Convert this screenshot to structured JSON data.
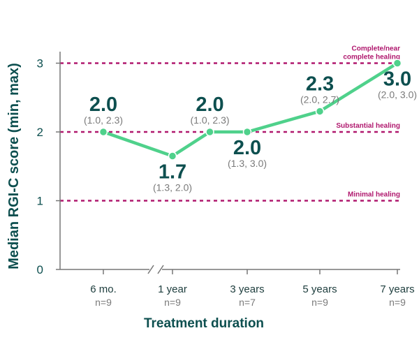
{
  "colors": {
    "line": "#4fd18b",
    "reference": "#b0186e",
    "text_dark": "#0d4f4f",
    "text_muted": "#7a7a7a",
    "axis": "#777777"
  },
  "chart_data": {
    "type": "line",
    "title": "",
    "xlabel": "Treatment duration",
    "ylabel": "Median RGI-C score (min, max)",
    "ylim": [
      0,
      3.15
    ],
    "y_ticks": [
      "0",
      "1",
      "2",
      "3"
    ],
    "grid": false,
    "categories": [
      "6 mo.",
      "1 year",
      "",
      "3 years",
      "5 years",
      "7 years"
    ],
    "tick_labels": [
      {
        "label": "6 mo.",
        "n": "n=9",
        "x": 0
      },
      {
        "label": "1 year",
        "n": "n=9",
        "x": 1
      },
      {
        "label": "3 years",
        "n": "n=7",
        "x": 2
      },
      {
        "label": "5 years",
        "n": "n=9",
        "x": 3
      },
      {
        "label": "7 years",
        "n": "n=9",
        "x": 4
      }
    ],
    "axis_break_between": [
      "6 mo.",
      "1 year"
    ],
    "points": [
      {
        "x": 0,
        "y": 2.0,
        "value": "2.0",
        "range": "(1.0, 2.3)",
        "label_pos": "above"
      },
      {
        "x": 1,
        "y": 1.65,
        "value": "1.7",
        "range": "(1.3, 2.0)",
        "label_pos": "below"
      },
      {
        "x": 1.5,
        "y": 2.0,
        "value": "2.0",
        "range": "(1.0, 2.3)",
        "label_pos": "above"
      },
      {
        "x": 2,
        "y": 2.0,
        "value": "2.0",
        "range": "(1.3, 3.0)",
        "label_pos": "below"
      },
      {
        "x": 3,
        "y": 2.3,
        "value": "2.3",
        "range": "(2.0, 2.7)",
        "label_pos": "above"
      },
      {
        "x": 4,
        "y": 3.0,
        "value": "3.0",
        "range": "(2.0, 3.0)",
        "label_pos": "below"
      }
    ],
    "reference_lines": [
      {
        "y": 1,
        "label": [
          "Minimal healing"
        ]
      },
      {
        "y": 2,
        "label": [
          "Substantial healing"
        ]
      },
      {
        "y": 3,
        "label": [
          "Complete/near",
          "complete healing"
        ]
      }
    ]
  }
}
